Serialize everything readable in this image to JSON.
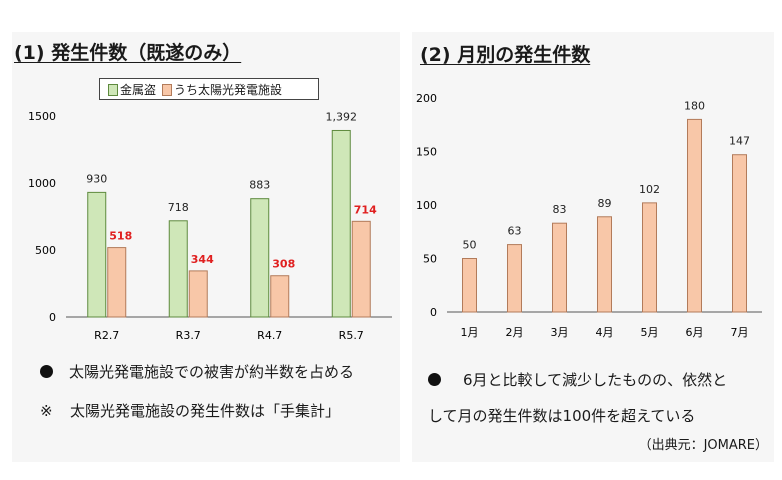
{
  "colors": {
    "green": "#cfe7b8",
    "green_stroke": "#5e8a3e",
    "orange": "#f8c7a8",
    "orange_stroke": "#b27b5a",
    "red_label": "#e02020"
  },
  "left": {
    "title": "(1)  発生件数（既遂のみ）",
    "legend": {
      "series1": "金属盗",
      "series2": "うち太陽光発電施設"
    },
    "notes": [
      {
        "icon": "bullet-icon",
        "text": "太陽光発電施設での被害が約半数を占める"
      },
      {
        "icon": "note-mark-icon",
        "mark": "※",
        "text": "太陽光発電施設の発生件数は「手集計」"
      }
    ]
  },
  "right": {
    "title": "(2)  月別の発生件数",
    "notes": [
      {
        "icon": "bullet-icon",
        "text": "6月と比較して減少したものの、依然と"
      },
      {
        "text": "して月の発生件数は100件を超えている"
      }
    ],
    "source": "（出典元：JOMARE）"
  },
  "chart_data": [
    {
      "type": "bar",
      "title": "発生件数（既遂のみ）",
      "categories": [
        "R2.7",
        "R3.7",
        "R4.7",
        "R5.7"
      ],
      "series": [
        {
          "name": "金属盗",
          "values": [
            930,
            718,
            883,
            1392
          ],
          "labels": [
            "930",
            "718",
            "883",
            "1,392"
          ]
        },
        {
          "name": "うち太陽光発電施設",
          "values": [
            518,
            344,
            308,
            714
          ],
          "labels": [
            "518",
            "344",
            "308",
            "714"
          ]
        }
      ],
      "yticks": [
        "0",
        "500",
        "1000",
        "1500"
      ],
      "ylim": [
        0,
        1500
      ],
      "grid": false
    },
    {
      "type": "bar",
      "title": "月別の発生件数",
      "categories": [
        "1月",
        "2月",
        "3月",
        "4月",
        "5月",
        "6月",
        "7月"
      ],
      "values": [
        50,
        63,
        83,
        89,
        102,
        180,
        147
      ],
      "yticks": [
        "0",
        "50",
        "100",
        "150",
        "200"
      ],
      "ylim": [
        0,
        200
      ],
      "grid": false
    }
  ]
}
